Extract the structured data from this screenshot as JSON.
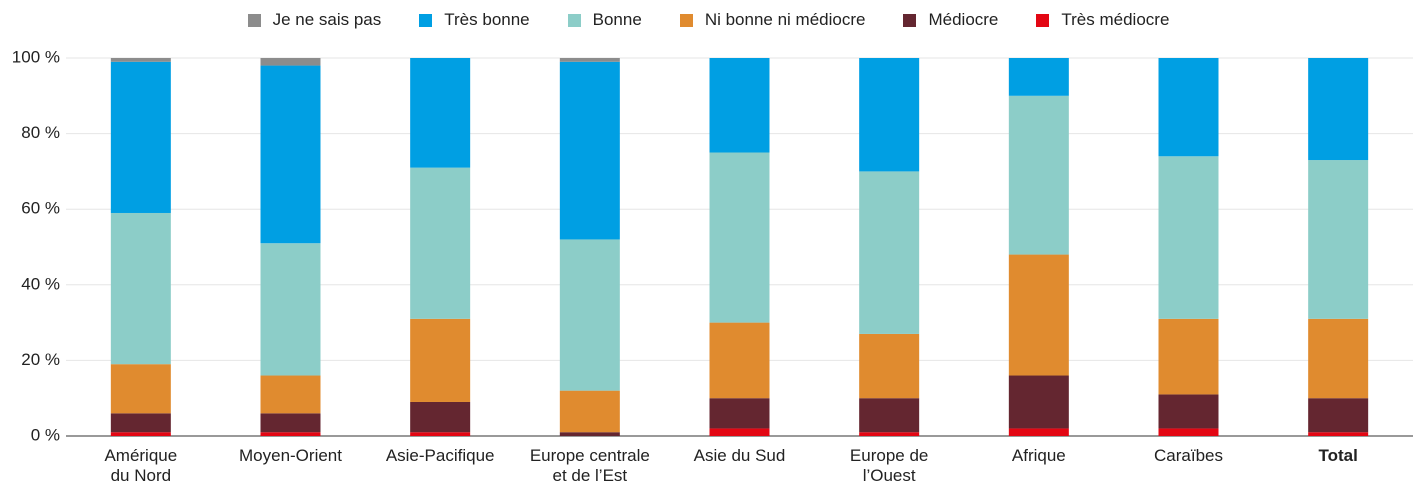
{
  "chart_data": {
    "type": "stacked_bar",
    "categories": [
      "Amérique\ndu Nord",
      "Moyen-Orient",
      "Asie-Pacifique",
      "Europe centrale\net de l’Est",
      "Asie du Sud",
      "Europe de\nl’Ouest",
      "Afrique",
      "Caraïbes",
      "Total"
    ],
    "series": [
      {
        "name": "Je ne sais pas",
        "color": "#8c8c8c",
        "values": [
          1,
          2,
          0,
          1,
          0,
          0,
          0,
          0,
          0
        ]
      },
      {
        "name": "Très bonne",
        "color": "#009fe3",
        "values": [
          40,
          47,
          29,
          47,
          25,
          30,
          10,
          26,
          27
        ]
      },
      {
        "name": "Bonne",
        "color": "#8ccdc8",
        "values": [
          40,
          35,
          40,
          40,
          45,
          43,
          42,
          43,
          42
        ]
      },
      {
        "name": "Ni bonne ni médiocre",
        "color": "#e08b2f",
        "values": [
          13,
          10,
          22,
          11,
          20,
          17,
          32,
          20,
          21
        ]
      },
      {
        "name": "Médiocre",
        "color": "#642630",
        "values": [
          5,
          5,
          8,
          1,
          8,
          9,
          14,
          9,
          9
        ]
      },
      {
        "name": "Très médiocre",
        "color": "#e30613",
        "values": [
          1,
          1,
          1,
          0,
          2,
          1,
          2,
          2,
          1
        ]
      }
    ],
    "ylim": [
      0,
      100
    ],
    "yticks": [
      {
        "value": 0,
        "label": "0 %"
      },
      {
        "value": 20,
        "label": "20 %"
      },
      {
        "value": 40,
        "label": "40 %"
      },
      {
        "value": 60,
        "label": "60 %"
      },
      {
        "value": 80,
        "label": "80 %"
      },
      {
        "value": 100,
        "label": "100 %"
      }
    ],
    "grid": true
  }
}
